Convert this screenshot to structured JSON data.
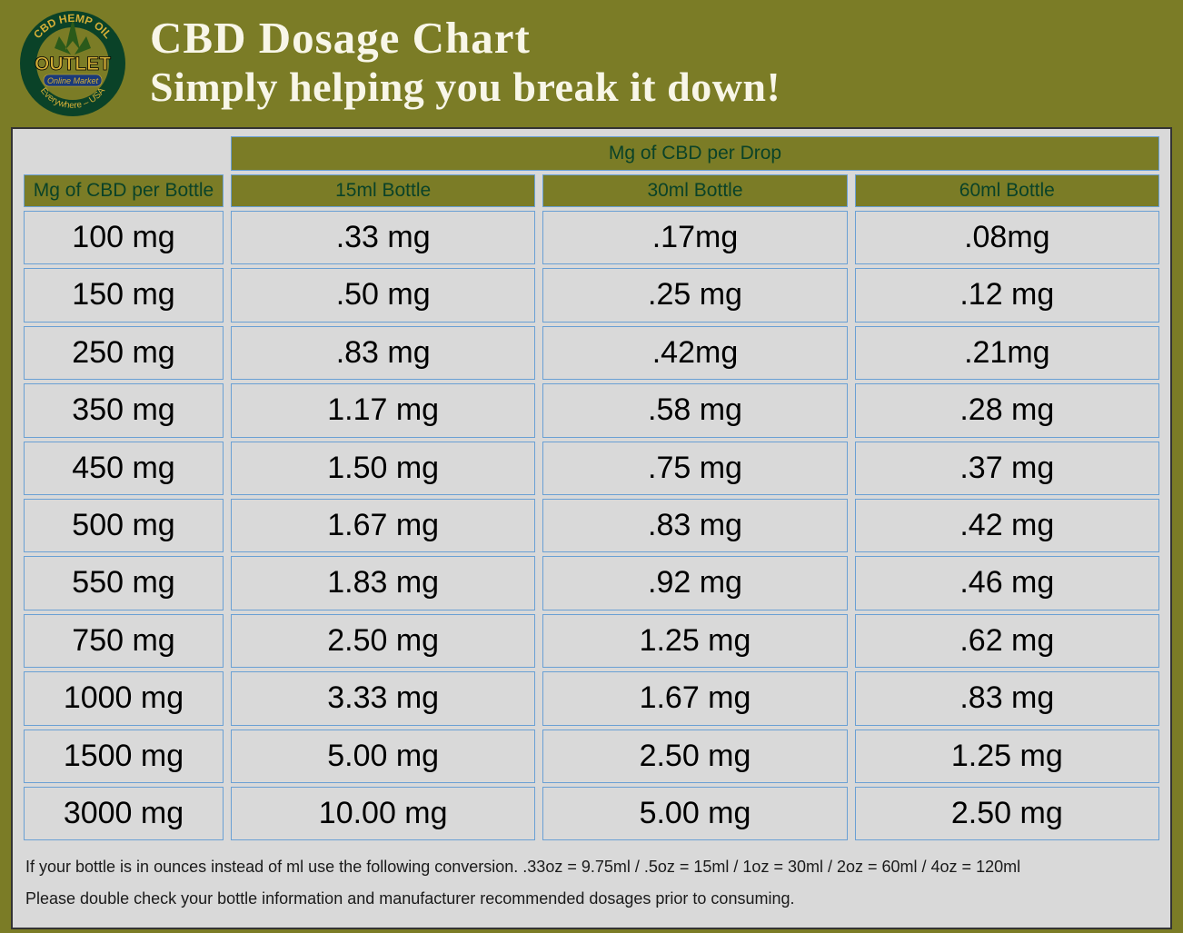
{
  "colors": {
    "page_bg": "#7b7c26",
    "panel_bg": "#d9d9d9",
    "cell_border": "#6aa0d4",
    "header_cell_bg": "#7b7c26",
    "header_cell_text": "#0a4228",
    "title_text": "#f8f6e8",
    "data_text": "#000000",
    "footer_text": "#1a1a1a",
    "panel_border": "#333333"
  },
  "typography": {
    "title_fontsize": 49,
    "subtitle_fontsize": 46,
    "header_cell_fontsize": 21,
    "data_cell_fontsize": 34,
    "footer_fontsize": 18,
    "title_font": "Bookman Old Style, serif",
    "body_font": "Arial, sans-serif"
  },
  "logo": {
    "text_top": "CBD HEMP OIL",
    "text_main": "OUTLET",
    "text_band": "Online Market",
    "text_bottom": "Everywhere - USA",
    "ring_color": "#0a4228",
    "ring_text_color": "#d4af37",
    "center_text_color": "#d4af37",
    "leaf_color": "#2b5a1a"
  },
  "header": {
    "title": "CBD Dosage Chart",
    "subtitle": "Simply helping you break it down!"
  },
  "table": {
    "type": "table",
    "span_header": "Mg of CBD per Drop",
    "row_header": "Mg of CBD per Bottle",
    "columns": [
      "15ml Bottle",
      "30ml Bottle",
      "60ml Bottle"
    ],
    "rows": [
      {
        "bottle": "100 mg",
        "cells": [
          ".33 mg",
          ".17mg",
          ".08mg"
        ]
      },
      {
        "bottle": "150 mg",
        "cells": [
          ".50 mg",
          ".25 mg",
          ".12 mg"
        ]
      },
      {
        "bottle": "250 mg",
        "cells": [
          ".83 mg",
          ".42mg",
          ".21mg"
        ]
      },
      {
        "bottle": "350 mg",
        "cells": [
          "1.17 mg",
          ".58 mg",
          ".28 mg"
        ]
      },
      {
        "bottle": "450 mg",
        "cells": [
          "1.50 mg",
          ".75 mg",
          ".37 mg"
        ]
      },
      {
        "bottle": "500 mg",
        "cells": [
          "1.67 mg",
          ".83 mg",
          ".42 mg"
        ]
      },
      {
        "bottle": "550 mg",
        "cells": [
          "1.83 mg",
          ".92 mg",
          ".46 mg"
        ]
      },
      {
        "bottle": "750 mg",
        "cells": [
          "2.50 mg",
          "1.25 mg",
          ".62 mg"
        ]
      },
      {
        "bottle": "1000 mg",
        "cells": [
          "3.33 mg",
          "1.67 mg",
          ".83 mg"
        ]
      },
      {
        "bottle": "1500 mg",
        "cells": [
          "5.00 mg",
          "2.50 mg",
          "1.25 mg"
        ]
      },
      {
        "bottle": "3000 mg",
        "cells": [
          "10.00 mg",
          "5.00 mg",
          "2.50 mg"
        ]
      }
    ]
  },
  "footer": {
    "line1": "If your bottle is in ounces instead of ml use the following conversion.   .33oz = 9.75ml  /  .5oz = 15ml  /  1oz = 30ml  /  2oz = 60ml  / 4oz = 120ml",
    "line2": "Please double check your bottle information and manufacturer recommended dosages prior to consuming."
  }
}
